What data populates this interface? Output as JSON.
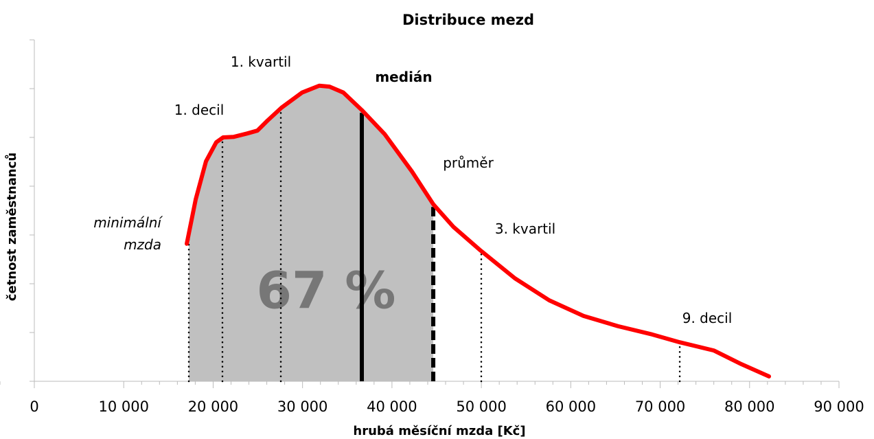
{
  "chart_data": {
    "type": "line",
    "title": "Distribuce mezd",
    "x_label": "hrubá měsíční mzda [Kč]",
    "y_label": "četnost zaměstnanců",
    "series": [
      {
        "name": "četnost",
        "color": "#ff0000",
        "x": [
          17050,
          18050,
          19200,
          20350,
          21120,
          22270,
          23800,
          24960,
          26110,
          27650,
          29950,
          31870,
          33020,
          34560,
          36630,
          39170,
          42240,
          44620,
          46850,
          49920,
          53760,
          57590,
          61430,
          65270,
          69110,
          72190,
          76020,
          79100,
          82170
        ],
        "values": [
          2.82,
          3.73,
          4.51,
          4.9,
          5.0,
          5.01,
          5.08,
          5.14,
          5.35,
          5.61,
          5.92,
          6.06,
          6.04,
          5.92,
          5.56,
          5.07,
          4.3,
          3.63,
          3.17,
          2.68,
          2.11,
          1.66,
          1.34,
          1.13,
          0.96,
          0.8,
          0.63,
          0.35,
          0.1
        ]
      }
    ],
    "markers": [
      {
        "label": "minimální mzda",
        "x": 17280,
        "style": "dotted",
        "font": "italic"
      },
      {
        "label": "1. decil",
        "x": 21040,
        "style": "dotted",
        "font": "normal"
      },
      {
        "label": "1. kvartil",
        "x": 27570,
        "style": "dotted",
        "font": "normal"
      },
      {
        "label": "medián",
        "x": 36630,
        "style": "solid",
        "font": "bold"
      },
      {
        "label": "průměr",
        "x": 44620,
        "style": "dashed",
        "font": "normal"
      },
      {
        "label": "3. kvartil",
        "x": 49990,
        "style": "dotted",
        "font": "normal"
      },
      {
        "label": "9. decil",
        "x": 72190,
        "style": "dotted",
        "font": "normal"
      }
    ],
    "shade": {
      "x": [
        17280,
        44620
      ],
      "label": "67 %",
      "color": "#c0c0c0"
    },
    "xlim": [
      0,
      90000
    ],
    "xticks": [
      0,
      {
        "value": 10000,
        "label": "10 000"
      },
      {
        "value": 20000,
        "label": "20 000"
      },
      {
        "value": 30000,
        "label": "30 000"
      },
      {
        "value": 40000,
        "label": "40 000"
      },
      {
        "value": 50000,
        "label": "50 000"
      },
      {
        "value": 60000,
        "label": "60 000"
      },
      {
        "value": 70000,
        "label": "70 000"
      },
      {
        "value": 80000,
        "label": "80 000"
      },
      {
        "value": 90000,
        "label": "90 000"
      }
    ],
    "ylim": [
      0,
      7
    ],
    "yticks": [
      0,
      1,
      2,
      3,
      4,
      5,
      6,
      7
    ]
  }
}
